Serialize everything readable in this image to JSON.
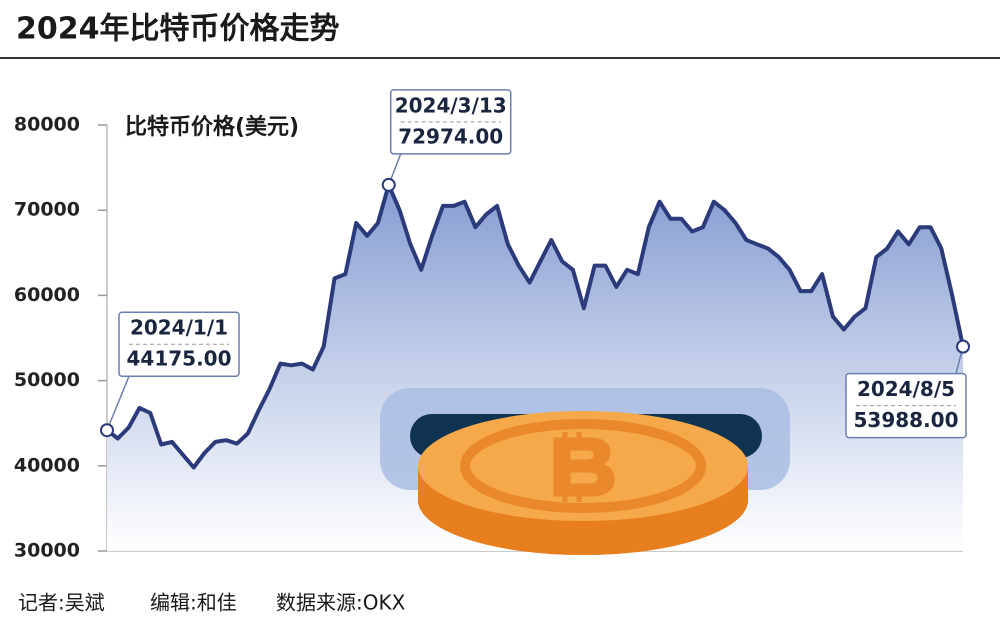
{
  "chart_data": {
    "type": "area",
    "title": "2024年比特币价格走势",
    "y_label": "比特币价格(美元)",
    "color": "#2b3a7a",
    "fill_color": "#7f97cf",
    "ylim": [
      30000,
      80000
    ],
    "yticks": [
      30000,
      40000,
      50000,
      60000,
      70000,
      80000
    ],
    "grid": false,
    "categories": [
      "2024/1/1",
      null,
      null,
      null,
      null,
      null,
      null,
      null,
      null,
      null,
      null,
      null,
      null,
      null,
      null,
      null,
      null,
      null,
      null,
      null,
      null,
      null,
      null,
      null,
      null,
      null,
      "2024/3/13",
      null,
      null,
      null,
      null,
      null,
      null,
      null,
      null,
      null,
      null,
      null,
      null,
      null,
      null,
      null,
      null,
      null,
      null,
      null,
      null,
      null,
      null,
      null,
      null,
      null,
      null,
      null,
      null,
      null,
      null,
      null,
      null,
      null,
      null,
      null,
      null,
      null,
      null,
      null,
      null,
      null,
      null,
      null,
      null,
      null,
      null,
      null,
      null,
      null,
      null,
      null,
      null,
      "2024/8/5"
    ],
    "values": [
      44175,
      43200,
      44500,
      46800,
      46200,
      42500,
      42800,
      41300,
      39800,
      41500,
      42800,
      43000,
      42600,
      43800,
      46500,
      49000,
      52000,
      51800,
      52000,
      51300,
      54000,
      62000,
      62500,
      68500,
      67000,
      68500,
      72974,
      70000,
      66000,
      63000,
      67000,
      70500,
      70500,
      71000,
      68000,
      69500,
      70500,
      66000,
      63500,
      61500,
      64000,
      66500,
      64000,
      63000,
      58500,
      63500,
      63500,
      61000,
      63000,
      62500,
      68000,
      71000,
      69000,
      69000,
      67500,
      68000,
      71000,
      70000,
      68500,
      66500,
      66000,
      65500,
      64500,
      63000,
      60500,
      60500,
      62500,
      57500,
      56000,
      57500,
      58500,
      64500,
      65500,
      67500,
      66000,
      68000,
      68000,
      65500,
      60000,
      53988
    ],
    "value_labels": [
      "44175.00",
      null,
      null,
      null,
      null,
      null,
      null,
      null,
      null,
      null,
      null,
      null,
      null,
      null,
      null,
      null,
      null,
      null,
      null,
      null,
      null,
      null,
      null,
      null,
      null,
      null,
      "72974.00",
      null,
      null,
      null,
      null,
      null,
      null,
      null,
      null,
      null,
      null,
      null,
      null,
      null,
      null,
      null,
      null,
      null,
      null,
      null,
      null,
      null,
      null,
      null,
      null,
      null,
      null,
      null,
      null,
      null,
      null,
      null,
      null,
      null,
      null,
      null,
      null,
      null,
      null,
      null,
      null,
      null,
      null,
      null,
      null,
      null,
      null,
      null,
      null,
      null,
      null,
      null,
      null,
      "53988.00"
    ]
  },
  "credits": [
    "记者:吴斌",
    "编辑:和佳",
    "数据来源:OKX"
  ]
}
